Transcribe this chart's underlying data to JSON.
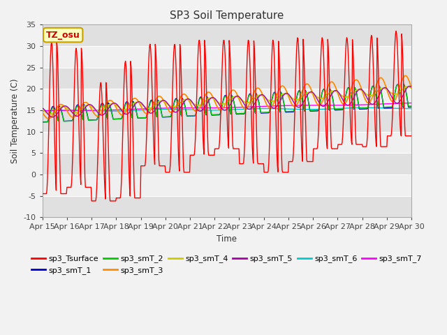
{
  "title": "SP3 Soil Temperature",
  "xlabel": "Time",
  "ylabel": "Soil Temperature (C)",
  "ylim": [
    -10,
    35
  ],
  "x_tick_labels": [
    "Apr 15",
    "Apr 16",
    "Apr 17",
    "Apr 18",
    "Apr 19",
    "Apr 20",
    "Apr 21",
    "Apr 22",
    "Apr 23",
    "Apr 24",
    "Apr 25",
    "Apr 26",
    "Apr 27",
    "Apr 28",
    "Apr 29",
    "Apr 30"
  ],
  "annotation_text": "TZ_osu",
  "annotation_bg": "#FFFFC0",
  "annotation_border": "#C8A000",
  "series_colors": {
    "sp3_Tsurface": "#FF0000",
    "sp3_smT_1": "#0000CC",
    "sp3_smT_2": "#00CC00",
    "sp3_smT_3": "#FF8C00",
    "sp3_smT_4": "#CCCC00",
    "sp3_smT_5": "#AA00AA",
    "sp3_smT_6": "#00CCCC",
    "sp3_smT_7": "#FF00FF"
  },
  "bg_bands": [
    [
      35,
      30,
      "#E8E8E8"
    ],
    [
      30,
      25,
      "#F5F5F5"
    ],
    [
      25,
      20,
      "#E8E8E8"
    ],
    [
      20,
      15,
      "#F5F5F5"
    ],
    [
      15,
      10,
      "#E8E8E8"
    ],
    [
      10,
      5,
      "#F5F5F5"
    ],
    [
      5,
      0,
      "#E8E8E8"
    ],
    [
      0,
      -5,
      "#F5F5F5"
    ],
    [
      -5,
      -10,
      "#E8E8E8"
    ]
  ],
  "title_fontsize": 11,
  "legend_fontsize": 8
}
